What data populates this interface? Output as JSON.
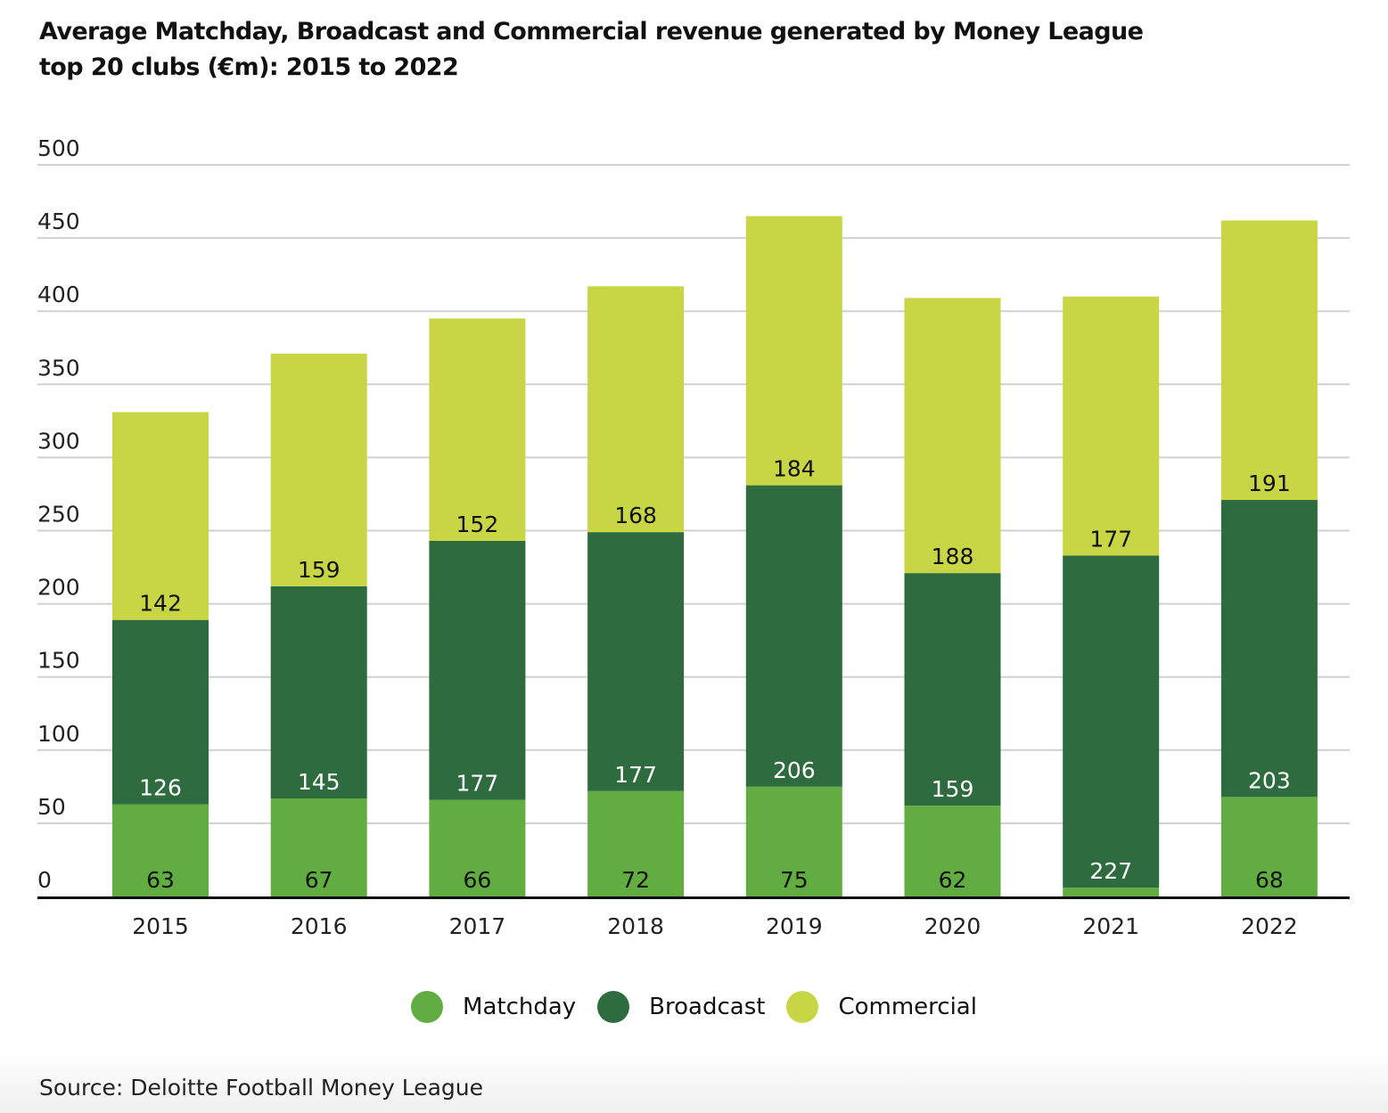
{
  "chart_data": {
    "type": "bar",
    "stacked": true,
    "title": "Average Matchday, Broadcast and Commercial revenue generated by Money League top 20 clubs (€m): 2015 to 2022",
    "xlabel": "",
    "ylabel": "",
    "ylim": [
      0,
      500
    ],
    "yticks": [
      0,
      50,
      100,
      150,
      200,
      250,
      300,
      350,
      400,
      450,
      500
    ],
    "grid": true,
    "legend_position": "bottom-center",
    "categories": [
      "2015",
      "2016",
      "2017",
      "2018",
      "2019",
      "2020",
      "2021",
      "2022"
    ],
    "series": [
      {
        "name": "Matchday",
        "color": "#62ad41",
        "label_color": "#111111",
        "values": [
          63,
          67,
          66,
          72,
          75,
          62,
          6,
          68
        ],
        "labels": [
          "63",
          "67",
          "66",
          "72",
          "75",
          "62",
          "",
          "68"
        ]
      },
      {
        "name": "Broadcast",
        "color": "#2e6b3f",
        "label_color": "#ffffff",
        "values": [
          126,
          145,
          177,
          177,
          206,
          159,
          227,
          203
        ],
        "labels": [
          "126",
          "145",
          "177",
          "177",
          "206",
          "159",
          "227",
          "203"
        ]
      },
      {
        "name": "Commercial",
        "color": "#c8d645",
        "label_color": "#111111",
        "values": [
          142,
          159,
          152,
          168,
          184,
          188,
          177,
          191
        ],
        "labels": [
          "142",
          "159",
          "152",
          "168",
          "184",
          "188",
          "177",
          "191"
        ]
      }
    ]
  },
  "header": {
    "title_line1": "Average Matchday, Broadcast and Commercial revenue generated by Money League",
    "title_line2": "top 20 clubs (€m): 2015 to 2022"
  },
  "legend": [
    {
      "label": "Matchday",
      "color": "#62ad41"
    },
    {
      "label": "Broadcast",
      "color": "#2e6b3f"
    },
    {
      "label": "Commercial",
      "color": "#c8d645"
    }
  ],
  "footer": {
    "source": "Source: Deloitte Football Money League"
  }
}
